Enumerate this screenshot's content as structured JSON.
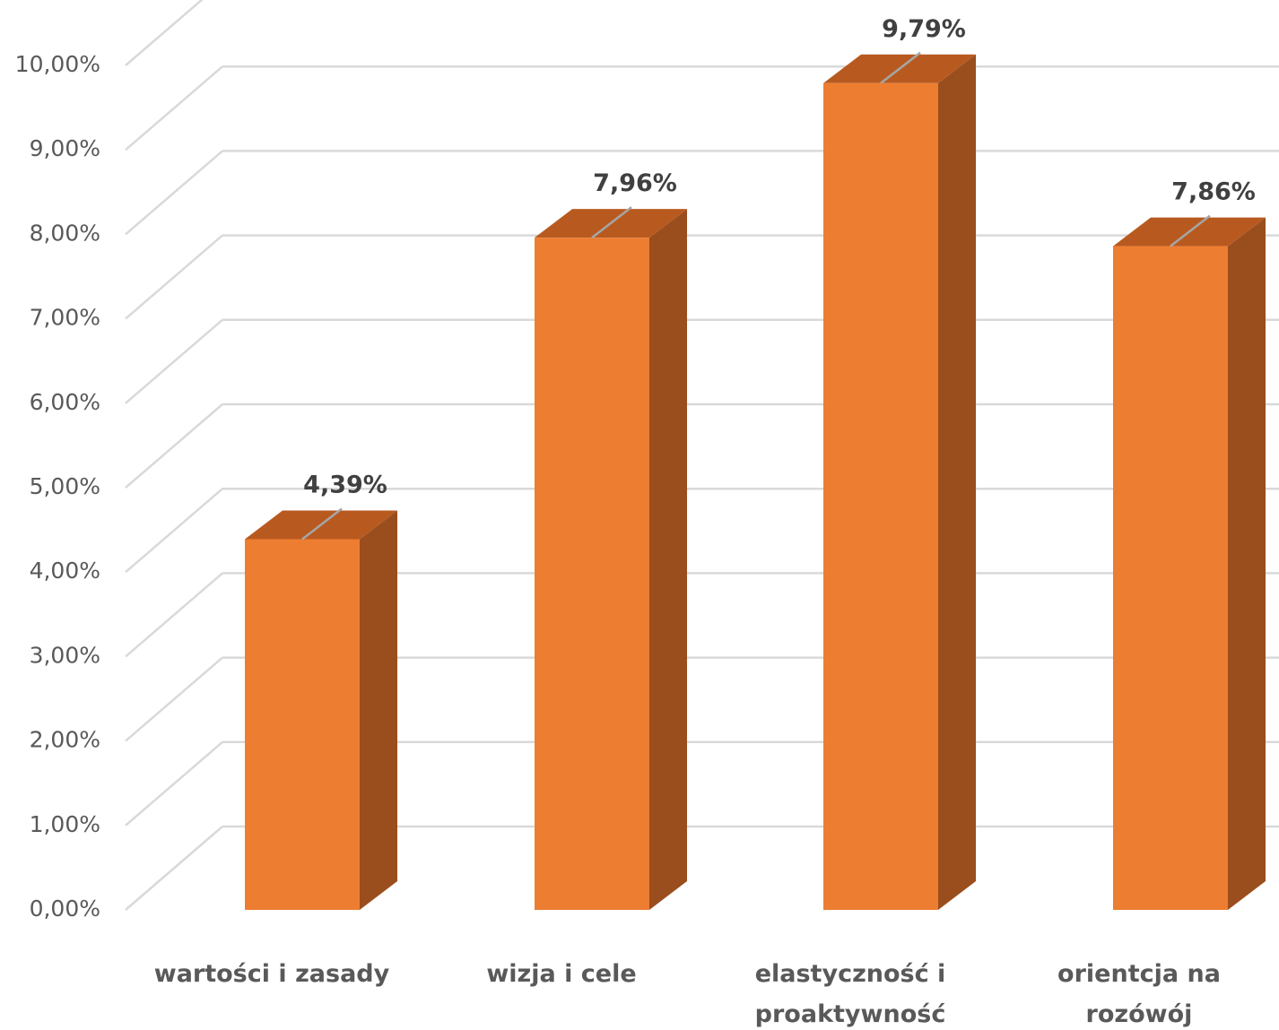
{
  "chart_data": {
    "type": "bar",
    "style": "3d-clustered-column",
    "categories": [
      "wartości i zasady",
      "wizja i cele",
      "elastyczność i proaktywność",
      "orientcja na rozówój"
    ],
    "category_lines": [
      [
        "wartości i zasady"
      ],
      [
        "wizja i cele"
      ],
      [
        "elastyczność i",
        "proaktywność"
      ],
      [
        "orientcja na",
        "rozówój"
      ]
    ],
    "values": [
      4.39,
      7.96,
      9.79,
      7.86
    ],
    "data_labels": [
      "4,39%",
      "7,96%",
      "9,79%",
      "7,86%"
    ],
    "title": "",
    "xlabel": "",
    "ylabel": "",
    "ylim": [
      0,
      10
    ],
    "y_tick_values": [
      0,
      1,
      2,
      3,
      4,
      5,
      6,
      7,
      8,
      9,
      10
    ],
    "y_ticks": [
      "0,00%",
      "1,00%",
      "2,00%",
      "3,00%",
      "4,00%",
      "5,00%",
      "6,00%",
      "7,00%",
      "8,00%",
      "9,00%",
      "10,00%"
    ],
    "grid": true,
    "legend": "none",
    "colors": {
      "bar_front": "#ED7D31",
      "bar_side": "#9A4D1D",
      "bar_top": "#B85A20",
      "grid": "#D9D9D9",
      "tick_text": "#595959",
      "label_text": "#404040"
    }
  }
}
